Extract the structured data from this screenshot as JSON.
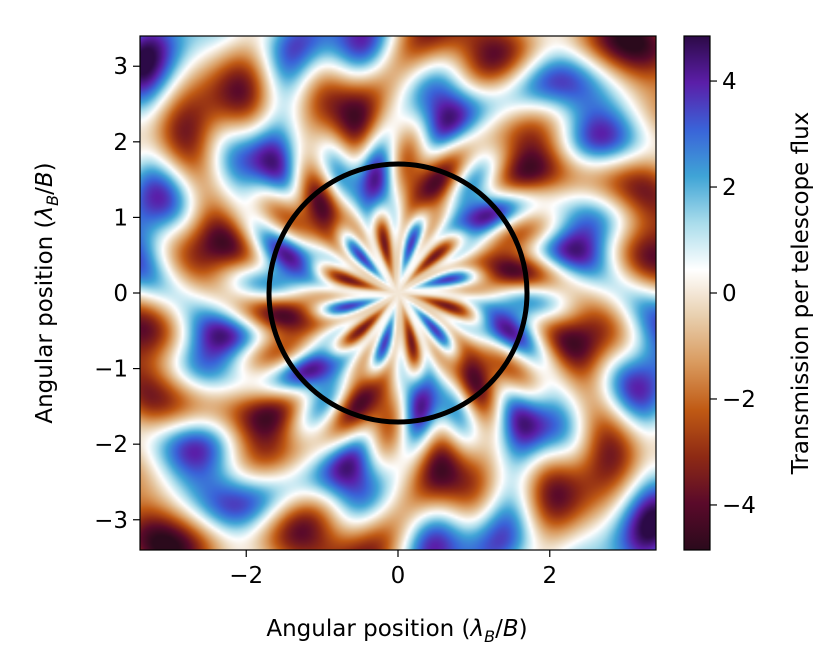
{
  "chart_data": {
    "type": "heatmap",
    "title": "",
    "xlabel": "Angular position (λ_B/B)",
    "ylabel": "Angular position (λ_B/B)",
    "xlabel_parts": {
      "main": "Angular position (",
      "lambda": "λ",
      "sub": "B",
      "tail": "/",
      "B": "B",
      "close": ")"
    },
    "ylabel_parts": {
      "main": "Angular position (",
      "lambda": "λ",
      "sub": "B",
      "tail": "/",
      "B": "B",
      "close": ")"
    },
    "xlim": [
      -3.4,
      3.4
    ],
    "ylim": [
      -3.4,
      3.4
    ],
    "x_ticks": [
      -2,
      0,
      2
    ],
    "x_tick_labels": [
      "−2",
      "0",
      "2"
    ],
    "y_ticks": [
      -3,
      -2,
      -1,
      0,
      1,
      2,
      3
    ],
    "y_tick_labels": [
      "−3",
      "−2",
      "−1",
      "0",
      "1",
      "2",
      "3"
    ],
    "grid": false,
    "colorbar": {
      "label": "Transmission per telescope flux",
      "range": [
        -4.85,
        4.85
      ],
      "ticks": [
        -4,
        -2,
        0,
        2,
        4
      ],
      "tick_labels": [
        "−4",
        "−2",
        "0",
        "2",
        "4"
      ],
      "colors": [
        "#2b0a1c",
        "#5a0a2a",
        "#8e2a14",
        "#c05a14",
        "#d99a5e",
        "#e8cfae",
        "#ffffff",
        "#a9dceb",
        "#3fa4d6",
        "#3a63d8",
        "#5b1ea8",
        "#2c0a47"
      ]
    },
    "map_model": {
      "description": "6-fold symmetric interference transmission map, zero at center",
      "symmetry": 6,
      "lobe_radii": [
        1.05,
        2.1,
        3.1
      ],
      "peak_amplitude": 4.8
    },
    "annotations": [
      {
        "type": "circle",
        "center": [
          0,
          0
        ],
        "radius": 1.7,
        "color": "#000000"
      }
    ]
  }
}
